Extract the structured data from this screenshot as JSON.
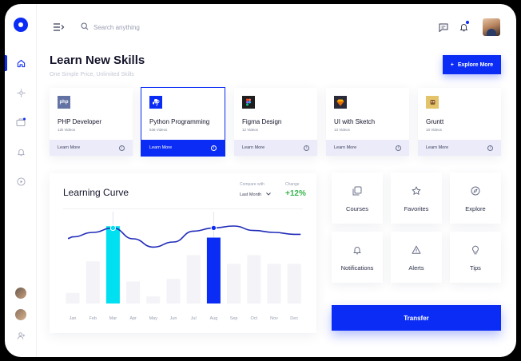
{
  "header": {
    "search_placeholder": "Search anything",
    "icons": [
      "menu-toggle-icon",
      "search-icon",
      "chat-icon",
      "bell-icon"
    ]
  },
  "sidebar": {
    "items": [
      "home-icon",
      "compass-icon",
      "briefcase-icon",
      "bell-icon",
      "play-icon"
    ]
  },
  "page": {
    "title": "Learn New Skills",
    "subtitle": "One Simple Price, Unlimited Skills",
    "explore_button": "Explore More"
  },
  "courses": [
    {
      "title": "PHP Developer",
      "count": "12k Videos",
      "action": "Learn More",
      "icon_text": "php",
      "icon_color": "#6272a4",
      "active": false
    },
    {
      "title": "Python Programming",
      "count": "536 Videos",
      "action": "Learn More",
      "icon_text": "",
      "icon_color": "#0b2cf4",
      "active": true
    },
    {
      "title": "Figma Design",
      "count": "12 Videos",
      "action": "Learn More",
      "icon_text": "",
      "icon_color": "#1e1e1e",
      "active": false
    },
    {
      "title": "UI with Sketch",
      "count": "13 Videos",
      "action": "Learn More",
      "icon_text": "",
      "icon_color": "#2a2a3a",
      "active": false
    },
    {
      "title": "Gruntt",
      "count": "18 Videos",
      "action": "Learn More",
      "icon_text": "",
      "icon_color": "#e3c46a",
      "active": false
    }
  ],
  "curve": {
    "title": "Learning Curve",
    "compare_label": "Compare with",
    "compare_value": "Last Month",
    "change_label": "Change",
    "change_value": "+12%"
  },
  "chart_data": {
    "type": "bar",
    "categories": [
      "Jan",
      "Feb",
      "Mar",
      "Apr",
      "May",
      "Jun",
      "Jul",
      "Aug",
      "Sep",
      "Oct",
      "Nov",
      "Dec"
    ],
    "values": [
      12,
      48,
      88,
      25,
      8,
      28,
      55,
      75,
      45,
      55,
      45,
      45
    ],
    "highlight": {
      "Mar": "#00e0f0",
      "Aug": "#0b2cf4"
    },
    "bar_color": "#f3f3f8",
    "line": {
      "values": [
        48,
        55,
        62,
        45,
        32,
        40,
        57,
        62,
        65,
        58,
        55,
        52
      ],
      "markers": [
        "Mar",
        "Aug"
      ],
      "color": "#1e2ab8"
    }
  },
  "tiles": [
    {
      "label": "Courses",
      "icon": "copy-icon"
    },
    {
      "label": "Favorites",
      "icon": "star-icon"
    },
    {
      "label": "Explore",
      "icon": "compass-icon"
    },
    {
      "label": "Notifications",
      "icon": "bell-icon"
    },
    {
      "label": "Alerts",
      "icon": "alert-icon"
    },
    {
      "label": "Tips",
      "icon": "bulb-icon"
    }
  ],
  "transfer_button": "Transfer",
  "colors": {
    "accent": "#0b2cf4",
    "positive": "#34b44a",
    "highlight": "#00e0f0"
  }
}
